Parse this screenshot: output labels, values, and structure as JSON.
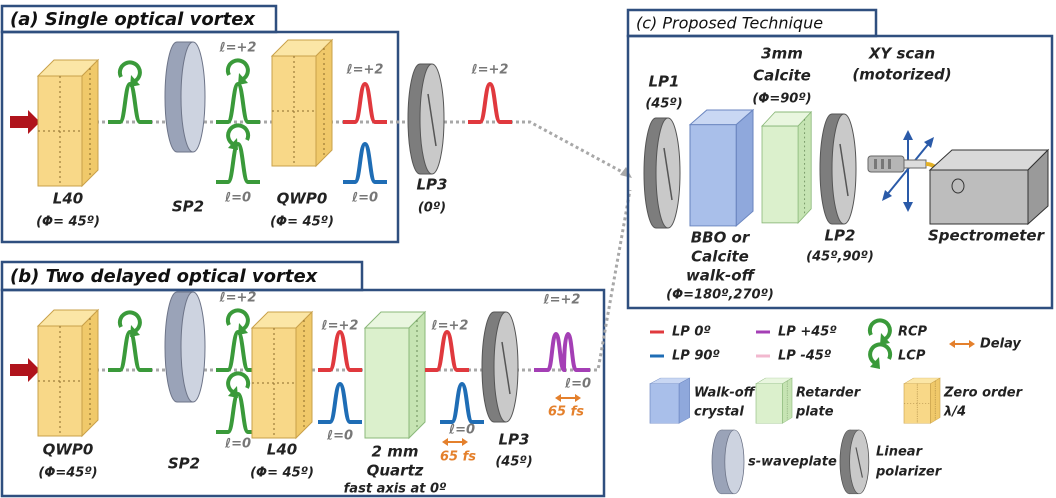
{
  "panel_a": {
    "title": "(a) Single optical vortex",
    "components": [
      {
        "label_lines": [
          "L40",
          "(Φ= 45º)"
        ]
      },
      {
        "label_lines": [
          "SP2"
        ]
      },
      {
        "label_lines": [
          "QWP0",
          "(Φ= 45º)"
        ]
      },
      {
        "label_lines": [
          "LP3",
          "(0º)"
        ]
      }
    ],
    "mode_labels": [
      "ℓ=+2",
      "ℓ=0",
      "ℓ=+2",
      "ℓ=0",
      "ℓ=+2"
    ]
  },
  "panel_b": {
    "title": "(b) Two delayed optical vortex",
    "components": [
      {
        "label_lines": [
          "QWP0",
          "(Φ=45º)"
        ]
      },
      {
        "label_lines": [
          "SP2"
        ]
      },
      {
        "label_lines": [
          "L40",
          "(Φ= 45º)"
        ]
      },
      {
        "label_lines": [
          "2 mm",
          "Quartz",
          "fast axis at 0º"
        ]
      },
      {
        "label_lines": [
          "LP3",
          "(45º)"
        ]
      }
    ],
    "mode_labels": [
      "ℓ=+2",
      "ℓ=0",
      "ℓ=+2",
      "ℓ=0",
      "ℓ=+2",
      "ℓ=0",
      "ℓ=+2",
      "ℓ=0"
    ],
    "delays": [
      "65 fs",
      "65 fs"
    ]
  },
  "panel_c": {
    "title": "(c) Proposed Technique",
    "components": [
      {
        "label_lines": [
          "LP1",
          "(45º)"
        ]
      },
      {
        "label_lines": [
          "BBO or",
          "Calcite",
          "walk-off",
          "(Φ=180º,270º)"
        ]
      },
      {
        "label_lines": [
          "3mm",
          "Calcite",
          "(Φ=90º)"
        ]
      },
      {
        "label_lines": [
          "LP2",
          "(45º,90º)"
        ]
      },
      {
        "label_lines": [
          "XY scan",
          "(motorized)"
        ]
      },
      {
        "label_lines": [
          "Spectrometer"
        ]
      }
    ]
  },
  "legend": [
    {
      "label_lines": [
        "LP 0º"
      ]
    },
    {
      "label_lines": [
        "LP 90º"
      ]
    },
    {
      "label_lines": [
        "LP +45º"
      ]
    },
    {
      "label_lines": [
        "LP -45º"
      ]
    },
    {
      "label_lines": [
        "RCP"
      ]
    },
    {
      "label_lines": [
        "LCP"
      ]
    },
    {
      "label_lines": [
        "Delay"
      ]
    },
    {
      "label_lines": [
        "Walk-off",
        "crystal"
      ]
    },
    {
      "label_lines": [
        "Retarder",
        "plate"
      ]
    },
    {
      "label_lines": [
        "Zero order",
        "λ/4"
      ]
    },
    {
      "label_lines": [
        "s-waveplate"
      ]
    },
    {
      "label_lines": [
        "Linear",
        "polarizer"
      ]
    }
  ]
}
